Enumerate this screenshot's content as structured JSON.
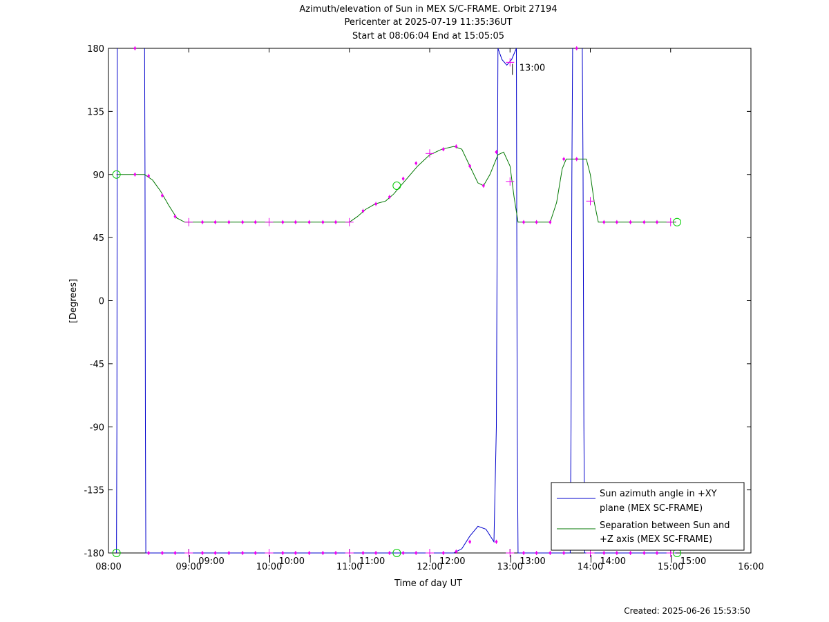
{
  "title_lines": [
    "Azimuth/elevation of Sun in MEX S/C-FRAME.  Orbit 27194",
    "Pericenter at 2025-07-19 11:35:36UT",
    "Start at 08:06:04 End at 15:05:05"
  ],
  "created": "Created: 2025-06-26 15:53:50",
  "colors": {
    "azimuth": "#0000cc",
    "separation": "#007700",
    "markers": "#ee00ee",
    "circles": "#00cc00"
  },
  "chart_data": {
    "type": "line",
    "xlabel": "Time of day UT",
    "ylabel": "[Degrees]",
    "xlim": [
      8,
      16
    ],
    "ylim": [
      -180,
      180
    ],
    "x_ticks": [
      {
        "v": 8,
        "label": "08:00"
      },
      {
        "v": 9,
        "label": "09:00"
      },
      {
        "v": 10,
        "label": "10:00"
      },
      {
        "v": 11,
        "label": "11:00"
      },
      {
        "v": 12,
        "label": "12:00"
      },
      {
        "v": 13,
        "label": "13:00"
      },
      {
        "v": 14,
        "label": "14:00"
      },
      {
        "v": 15,
        "label": "15:00"
      },
      {
        "v": 16,
        "label": "16:00"
      }
    ],
    "y_ticks": [
      {
        "v": 180,
        "label": "180"
      },
      {
        "v": 135,
        "label": "135"
      },
      {
        "v": 90,
        "label": "90"
      },
      {
        "v": 45,
        "label": "45"
      },
      {
        "v": 0,
        "label": "0"
      },
      {
        "v": -45,
        "label": "-45"
      },
      {
        "v": -90,
        "label": "-90"
      },
      {
        "v": -135,
        "label": "-135"
      },
      {
        "v": -180,
        "label": "-180"
      }
    ],
    "hour_marks": [
      {
        "x": 9,
        "label": "09:00"
      },
      {
        "x": 10,
        "label": "10:00"
      },
      {
        "x": 11,
        "label": "11:00"
      },
      {
        "x": 12,
        "label": "12:00"
      },
      {
        "x": 13,
        "label": "13:00"
      },
      {
        "x": 14,
        "label": "14:00"
      },
      {
        "x": 15,
        "label": "15:00"
      }
    ],
    "annotations": [
      {
        "x": 13.03,
        "y": 165,
        "label": "13:00"
      }
    ],
    "series": [
      {
        "name": "Sun azimuth angle in +XY plane (MEX SC-FRAME)",
        "legend_lines": [
          "Sun azimuth angle in +XY",
          "plane (MEX SC-FRAME)"
        ],
        "color": "#0000cc",
        "segments": [
          [
            [
              8.1,
              -180
            ],
            [
              8.105,
              -90
            ],
            [
              8.11,
              180
            ]
          ],
          [
            [
              8.45,
              180
            ],
            [
              8.455,
              90
            ],
            [
              8.46,
              -90
            ],
            [
              8.465,
              -180
            ],
            [
              12.3,
              -180
            ],
            [
              12.4,
              -177
            ],
            [
              12.5,
              -168
            ],
            [
              12.6,
              -161
            ],
            [
              12.7,
              -163
            ],
            [
              12.8,
              -172
            ],
            [
              12.83,
              -90
            ],
            [
              12.85,
              180
            ]
          ],
          [
            [
              12.85,
              180
            ],
            [
              12.9,
              172
            ],
            [
              12.96,
              168
            ],
            [
              13.02,
              172
            ],
            [
              13.08,
              180
            ]
          ],
          [
            [
              13.08,
              180
            ],
            [
              13.09,
              -90
            ],
            [
              13.1,
              -180
            ],
            [
              13.75,
              -180
            ],
            [
              13.76,
              -90
            ],
            [
              13.77,
              90
            ],
            [
              13.78,
              180
            ]
          ],
          [
            [
              13.9,
              180
            ],
            [
              13.91,
              90
            ],
            [
              13.92,
              -90
            ],
            [
              13.93,
              -180
            ],
            [
              15.07,
              -180
            ]
          ]
        ]
      },
      {
        "name": "Separation between Sun and +Z axis (MEX SC-FRAME)",
        "legend_lines": [
          "Separation between Sun and",
          "+Z axis (MEX SC-FRAME)"
        ],
        "color": "#007700",
        "segments": [
          [
            [
              8.1,
              90
            ],
            [
              8.45,
              90
            ],
            [
              8.55,
              86
            ],
            [
              8.65,
              78
            ],
            [
              8.75,
              68
            ],
            [
              8.85,
              59
            ],
            [
              8.95,
              56
            ],
            [
              9.0,
              56
            ],
            [
              11.0,
              56
            ],
            [
              11.1,
              60
            ],
            [
              11.2,
              65
            ],
            [
              11.32,
              69
            ],
            [
              11.45,
              71
            ],
            [
              11.55,
              76
            ],
            [
              11.7,
              86
            ],
            [
              11.85,
              96
            ],
            [
              12.0,
              104
            ],
            [
              12.15,
              108
            ],
            [
              12.3,
              110
            ],
            [
              12.4,
              108
            ],
            [
              12.5,
              96
            ],
            [
              12.6,
              84
            ],
            [
              12.67,
              82
            ],
            [
              12.75,
              90
            ],
            [
              12.85,
              104
            ],
            [
              12.92,
              106
            ],
            [
              13.0,
              96
            ],
            [
              13.05,
              74
            ],
            [
              13.1,
              56
            ],
            [
              13.5,
              56
            ],
            [
              13.58,
              70
            ],
            [
              13.65,
              94
            ],
            [
              13.7,
              101
            ],
            [
              13.95,
              101
            ],
            [
              14.0,
              90
            ],
            [
              14.05,
              70
            ],
            [
              14.1,
              56
            ],
            [
              15.07,
              56
            ]
          ]
        ]
      }
    ],
    "markers": [
      {
        "x": 8.33,
        "y": 180
      },
      {
        "x": 8.33,
        "y": 90
      },
      {
        "x": 8.5,
        "y": 89
      },
      {
        "x": 8.67,
        "y": 75
      },
      {
        "x": 8.83,
        "y": 60
      },
      {
        "x": 9.17,
        "y": 56
      },
      {
        "x": 9.33,
        "y": 56
      },
      {
        "x": 9.5,
        "y": 56
      },
      {
        "x": 9.67,
        "y": 56
      },
      {
        "x": 9.83,
        "y": 56
      },
      {
        "x": 10.17,
        "y": 56
      },
      {
        "x": 10.33,
        "y": 56
      },
      {
        "x": 10.5,
        "y": 56
      },
      {
        "x": 10.67,
        "y": 56
      },
      {
        "x": 10.83,
        "y": 56
      },
      {
        "x": 11.17,
        "y": 64
      },
      {
        "x": 11.33,
        "y": 69
      },
      {
        "x": 11.5,
        "y": 74
      },
      {
        "x": 11.67,
        "y": 87
      },
      {
        "x": 11.83,
        "y": 98
      },
      {
        "x": 12.17,
        "y": 108
      },
      {
        "x": 12.33,
        "y": 110
      },
      {
        "x": 12.5,
        "y": 96
      },
      {
        "x": 12.67,
        "y": 82
      },
      {
        "x": 12.83,
        "y": 106
      },
      {
        "x": 13.17,
        "y": 56
      },
      {
        "x": 13.33,
        "y": 56
      },
      {
        "x": 13.5,
        "y": 56
      },
      {
        "x": 13.67,
        "y": 101
      },
      {
        "x": 13.83,
        "y": 101
      },
      {
        "x": 14.17,
        "y": 56
      },
      {
        "x": 14.33,
        "y": 56
      },
      {
        "x": 14.5,
        "y": 56
      },
      {
        "x": 14.67,
        "y": 56
      },
      {
        "x": 14.83,
        "y": 56
      },
      {
        "x": 13.83,
        "y": 180
      },
      {
        "x": 8.5,
        "y": -180
      },
      {
        "x": 8.67,
        "y": -180
      },
      {
        "x": 8.83,
        "y": -180
      },
      {
        "x": 9.17,
        "y": -180
      },
      {
        "x": 9.33,
        "y": -180
      },
      {
        "x": 9.5,
        "y": -180
      },
      {
        "x": 9.67,
        "y": -180
      },
      {
        "x": 9.83,
        "y": -180
      },
      {
        "x": 10.17,
        "y": -180
      },
      {
        "x": 10.33,
        "y": -180
      },
      {
        "x": 10.5,
        "y": -180
      },
      {
        "x": 10.67,
        "y": -180
      },
      {
        "x": 10.83,
        "y": -180
      },
      {
        "x": 11.17,
        "y": -180
      },
      {
        "x": 11.33,
        "y": -180
      },
      {
        "x": 11.5,
        "y": -180
      },
      {
        "x": 11.67,
        "y": -180
      },
      {
        "x": 11.83,
        "y": -180
      },
      {
        "x": 12.17,
        "y": -180
      },
      {
        "x": 12.33,
        "y": -179
      },
      {
        "x": 12.5,
        "y": -172
      },
      {
        "x": 12.83,
        "y": -172
      },
      {
        "x": 13.17,
        "y": -180
      },
      {
        "x": 13.33,
        "y": -180
      },
      {
        "x": 13.5,
        "y": -180
      },
      {
        "x": 13.67,
        "y": -180
      },
      {
        "x": 14.17,
        "y": -180
      },
      {
        "x": 14.33,
        "y": -180
      },
      {
        "x": 14.5,
        "y": -180
      },
      {
        "x": 14.67,
        "y": -180
      },
      {
        "x": 14.83,
        "y": -180
      }
    ],
    "hour_crosses": [
      {
        "x": 9,
        "y": 56
      },
      {
        "x": 10,
        "y": 56
      },
      {
        "x": 11,
        "y": 56
      },
      {
        "x": 12,
        "y": 105
      },
      {
        "x": 13,
        "y": 85
      },
      {
        "x": 13,
        "y": 170
      },
      {
        "x": 14,
        "y": 71
      },
      {
        "x": 15,
        "y": 56
      },
      {
        "x": 9,
        "y": -180
      },
      {
        "x": 10,
        "y": -180
      },
      {
        "x": 11,
        "y": -180
      },
      {
        "x": 12,
        "y": -180
      },
      {
        "x": 13,
        "y": -180
      },
      {
        "x": 14,
        "y": -180
      },
      {
        "x": 15,
        "y": -180
      }
    ],
    "circles": [
      {
        "x": 8.1,
        "y": 90
      },
      {
        "x": 11.59,
        "y": 82
      },
      {
        "x": 15.08,
        "y": 56
      },
      {
        "x": 8.1,
        "y": -180
      },
      {
        "x": 11.59,
        "y": -180
      },
      {
        "x": 15.08,
        "y": -180
      }
    ],
    "legend": {
      "position": "bottom-right"
    }
  }
}
